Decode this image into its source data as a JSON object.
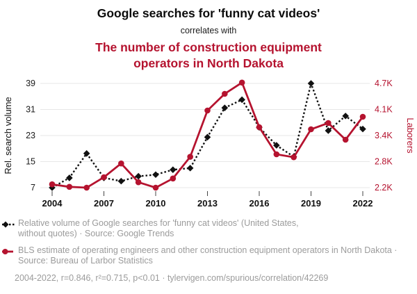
{
  "header": {
    "title_top": "Google searches for 'funny cat videos'",
    "connector": "correlates with",
    "title_bottom": "The number of construction equipment operators in North Dakota"
  },
  "colors": {
    "series_black": "#111111",
    "series_red": "#b5132f",
    "legend_gray": "#9b9b9b",
    "grid_gray": "#e7e7e7",
    "tick_gray": "#444444"
  },
  "chart_data": {
    "type": "line",
    "x": [
      2004,
      2005,
      2006,
      2007,
      2008,
      2009,
      2010,
      2011,
      2012,
      2013,
      2014,
      2015,
      2016,
      2017,
      2018,
      2019,
      2020,
      2021,
      2022
    ],
    "x_tick_labels": [
      "2004",
      "2007",
      "2010",
      "2013",
      "2016",
      "2019",
      "2022"
    ],
    "left_axis": {
      "label": "Rel. search volume",
      "ticks": [
        7,
        15,
        23,
        31,
        39
      ],
      "range_min": 7,
      "range_max": 39
    },
    "right_axis": {
      "label": "Laborers",
      "tick_labels": [
        "2.2K",
        "2.8K",
        "3.4K",
        "4.1K",
        "4.7K"
      ],
      "range_min": 2.2,
      "range_max": 4.7
    },
    "grid": true,
    "legend_position": "bottom",
    "series": [
      {
        "name": "Relative volume of Google searches for 'funny cat videos'",
        "axis": "left",
        "style": "dashed",
        "marker": "diamond",
        "color": "#111111",
        "values": [
          7,
          10,
          17.5,
          10,
          9,
          10.5,
          11,
          12.5,
          13,
          22.5,
          31.5,
          34,
          25.5,
          20,
          16.5,
          39,
          24.5,
          29,
          25
        ]
      },
      {
        "name": "BLS estimate of construction equipment operators in North Dakota",
        "axis": "right",
        "style": "solid",
        "marker": "circle",
        "color": "#b5132f",
        "unit": "thousands",
        "values": [
          2.28,
          2.22,
          2.2,
          2.45,
          2.78,
          2.33,
          2.2,
          2.42,
          2.94,
          4.05,
          4.45,
          4.72,
          3.65,
          3.0,
          2.93,
          3.6,
          3.75,
          3.35,
          3.9
        ]
      }
    ]
  },
  "legend": {
    "items": [
      {
        "text": "Relative volume of Google searches for 'funny cat videos' (United States, without quotes) · Source: Google Trends"
      },
      {
        "text": "BLS estimate of operating engineers and other construction equipment operators in North Dakota · Source: Bureau of Larbor Statistics"
      }
    ]
  },
  "footer": {
    "text": "2004-2022, r=0.846, r²=0.715, p<0.01 · tylervigen.com/spurious/correlation/42269"
  }
}
